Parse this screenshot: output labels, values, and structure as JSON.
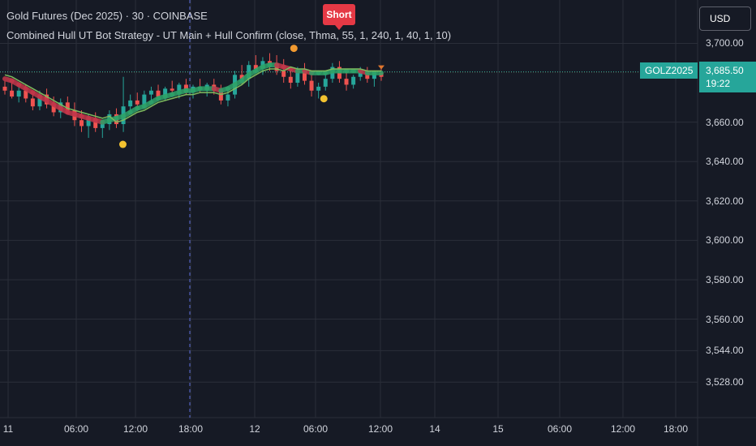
{
  "header": {
    "title": "Gold Futures (Dec 2025) · 30 · COINBASE",
    "indicator": "Combined Hull UT Bot Strategy - UT Main + Hull Confirm (close, Thma, 55, 1, 240, 1, 40, 1, 10)"
  },
  "currency": "USD",
  "symbol": "GOLZ2025",
  "last_price": "3,685.50",
  "countdown": "19:22",
  "signal_label": "Short",
  "colors": {
    "background": "#161a25",
    "grid": "#2a2e39",
    "up": "#26a69a",
    "down": "#ef5350",
    "hull_up": "#2ea36a",
    "hull_down": "#c4374a",
    "signal": "#e53945"
  },
  "chart_data": {
    "type": "candlestick",
    "ylim": [
      3510,
      3722
    ],
    "y_ticks": [
      {
        "value": 3700,
        "label": "3,700.00"
      },
      {
        "value": 3685.5,
        "label": "3,685.50"
      },
      {
        "value": 3660,
        "label": "3,660.00"
      },
      {
        "value": 3640,
        "label": "3,640.00"
      },
      {
        "value": 3620,
        "label": "3,620.00"
      },
      {
        "value": 3600,
        "label": "3,600.00"
      },
      {
        "value": 3580,
        "label": "3,580.00"
      },
      {
        "value": 3560,
        "label": "3,560.00"
      },
      {
        "value": 3544,
        "label": "3,544.00"
      },
      {
        "value": 3528,
        "label": "3,528.00"
      }
    ],
    "x_ticks": [
      "11",
      "06:00",
      "12:00",
      "18:00",
      "12",
      "06:00",
      "12:00",
      "14",
      "15",
      "06:00",
      "12:00",
      "18:00"
    ],
    "session_break_at": "18:00",
    "candles": [
      [
        3678,
        3681,
        3674,
        3676
      ],
      [
        3676,
        3680,
        3672,
        3673
      ],
      [
        3673,
        3678,
        3670,
        3676
      ],
      [
        3676,
        3679,
        3670,
        3672
      ],
      [
        3672,
        3675,
        3666,
        3668
      ],
      [
        3668,
        3676,
        3666,
        3674
      ],
      [
        3674,
        3677,
        3667,
        3669
      ],
      [
        3669,
        3673,
        3663,
        3665
      ],
      [
        3665,
        3672,
        3662,
        3670
      ],
      [
        3670,
        3673,
        3664,
        3666
      ],
      [
        3666,
        3670,
        3658,
        3661
      ],
      [
        3661,
        3666,
        3655,
        3658
      ],
      [
        3658,
        3664,
        3652,
        3662
      ],
      [
        3662,
        3665,
        3655,
        3657
      ],
      [
        3657,
        3661,
        3652,
        3659
      ],
      [
        3659,
        3666,
        3656,
        3664
      ],
      [
        3664,
        3667,
        3657,
        3659
      ],
      [
        3659,
        3683,
        3655,
        3668
      ],
      [
        3668,
        3674,
        3664,
        3671
      ],
      [
        3671,
        3675,
        3666,
        3669
      ],
      [
        3669,
        3676,
        3667,
        3674
      ],
      [
        3674,
        3678,
        3670,
        3676
      ],
      [
        3676,
        3679,
        3671,
        3673
      ],
      [
        3673,
        3678,
        3671,
        3677
      ],
      [
        3677,
        3681,
        3674,
        3676
      ],
      [
        3676,
        3680,
        3672,
        3679
      ],
      [
        3679,
        3682,
        3674,
        3675
      ],
      [
        3675,
        3679,
        3672,
        3678
      ],
      [
        3678,
        3682,
        3675,
        3677
      ],
      [
        3677,
        3680,
        3673,
        3679
      ],
      [
        3679,
        3682,
        3674,
        3676
      ],
      [
        3676,
        3679,
        3669,
        3671
      ],
      [
        3671,
        3676,
        3668,
        3674
      ],
      [
        3674,
        3686,
        3672,
        3684
      ],
      [
        3684,
        3689,
        3679,
        3682
      ],
      [
        3682,
        3691,
        3678,
        3689
      ],
      [
        3689,
        3694,
        3685,
        3687
      ],
      [
        3687,
        3693,
        3684,
        3691
      ],
      [
        3691,
        3695,
        3686,
        3690
      ],
      [
        3690,
        3694,
        3684,
        3686
      ],
      [
        3686,
        3692,
        3680,
        3683
      ],
      [
        3683,
        3686,
        3677,
        3680
      ],
      [
        3680,
        3688,
        3678,
        3686
      ],
      [
        3686,
        3690,
        3679,
        3681
      ],
      [
        3681,
        3684,
        3673,
        3676
      ],
      [
        3676,
        3680,
        3672,
        3678
      ],
      [
        3678,
        3684,
        3676,
        3682
      ],
      [
        3682,
        3690,
        3680,
        3688
      ],
      [
        3688,
        3691,
        3680,
        3682
      ],
      [
        3682,
        3686,
        3676,
        3679
      ],
      [
        3679,
        3684,
        3677,
        3683
      ],
      [
        3683,
        3688,
        3681,
        3685
      ],
      [
        3685,
        3688,
        3680,
        3682
      ],
      [
        3682,
        3686,
        3678,
        3685
      ],
      [
        3685,
        3687,
        3681,
        3683
      ]
    ],
    "series": [
      {
        "name": "",
        "values": [
          3682,
          3681,
          3679,
          3677,
          3675,
          3673,
          3671,
          3669,
          3667,
          3665,
          3664,
          3663,
          3662,
          3661,
          3660,
          3661,
          3662,
          3663,
          3665,
          3667,
          3668,
          3670,
          3672,
          3673,
          3674,
          3675,
          3676,
          3676,
          3677,
          3677,
          3677,
          3676,
          3677,
          3679,
          3681,
          3684,
          3686,
          3688,
          3689,
          3689,
          3688,
          3687,
          3686,
          3686,
          3685,
          3685,
          3685,
          3686,
          3686,
          3686,
          3686,
          3686,
          3685,
          3685,
          3685
        ]
      }
    ]
  }
}
